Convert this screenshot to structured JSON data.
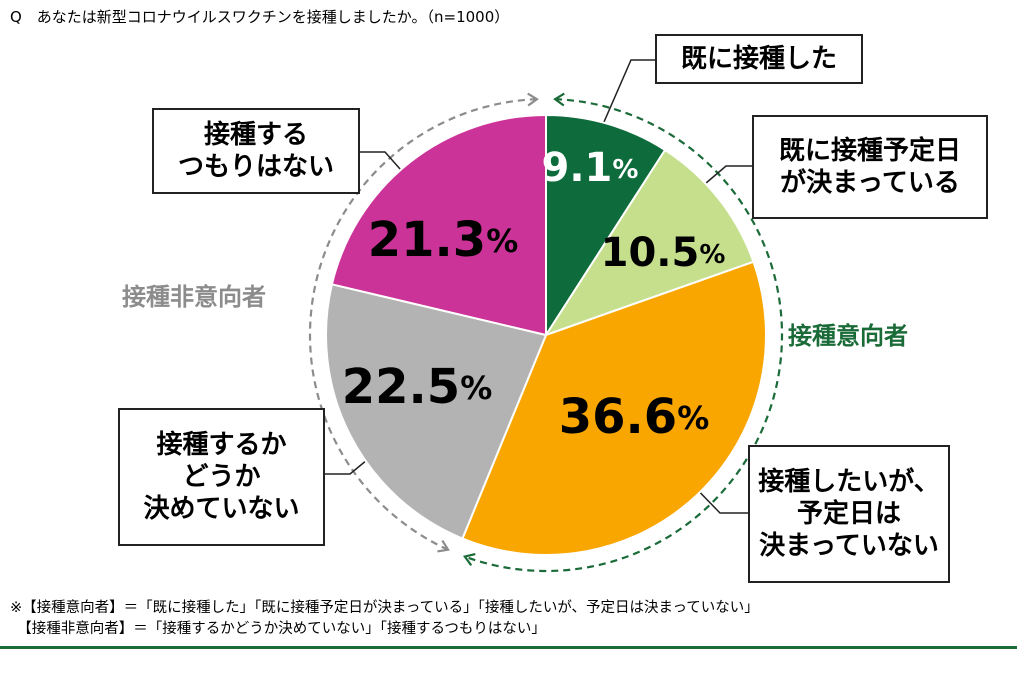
{
  "question": "Q　あなたは新型コロナウイルスワクチンを接種しましたか。（n=1000）",
  "colors": {
    "green_dark": "#0e6b3c",
    "green_light": "#c5df8d",
    "orange": "#f9a600",
    "gray": "#b3b3b3",
    "magenta": "#cc3399",
    "intent_group": "#1a6b38",
    "non_intent_group": "#8c8c8c"
  },
  "chart_data": {
    "type": "pie",
    "n": 1000,
    "unit": "%",
    "start": "top",
    "direction": "clockwise",
    "slices": [
      {
        "label": "既に接種した",
        "value": 9.1,
        "display": "9.1",
        "color": "#0e6b3c",
        "label_color": "#ffffff"
      },
      {
        "label": "既に接種予定日\nが決まっている",
        "value": 10.5,
        "display": "10.5",
        "color": "#c5df8d",
        "label_color": "#000000"
      },
      {
        "label": "接種したいが、\n予定日は\n決まっていない",
        "value": 36.6,
        "display": "36.6",
        "color": "#f9a600",
        "label_color": "#000000"
      },
      {
        "label": "接種するか\nどうか\n決めていない",
        "value": 22.5,
        "display": "22.5",
        "color": "#b3b3b3",
        "label_color": "#000000"
      },
      {
        "label": "接種する\nつもりはない",
        "value": 21.3,
        "display": "21.3",
        "color": "#cc3399",
        "label_color": "#000000"
      }
    ],
    "groups": [
      {
        "label": "接種意向者",
        "slices": [
          0,
          1,
          2
        ],
        "color": "#1a6b38"
      },
      {
        "label": "接種非意向者",
        "slices": [
          3,
          4
        ],
        "color": "#8c8c8c"
      }
    ]
  },
  "footnote": {
    "line1": "※【接種意向者】＝「既に接種した」「既に接種予定日が決まっている」「接種したいが、予定日は決まっていない」",
    "line2": "　【接種非意向者】＝「接種するかどうか決めていない」「接種するつもりはない」"
  }
}
